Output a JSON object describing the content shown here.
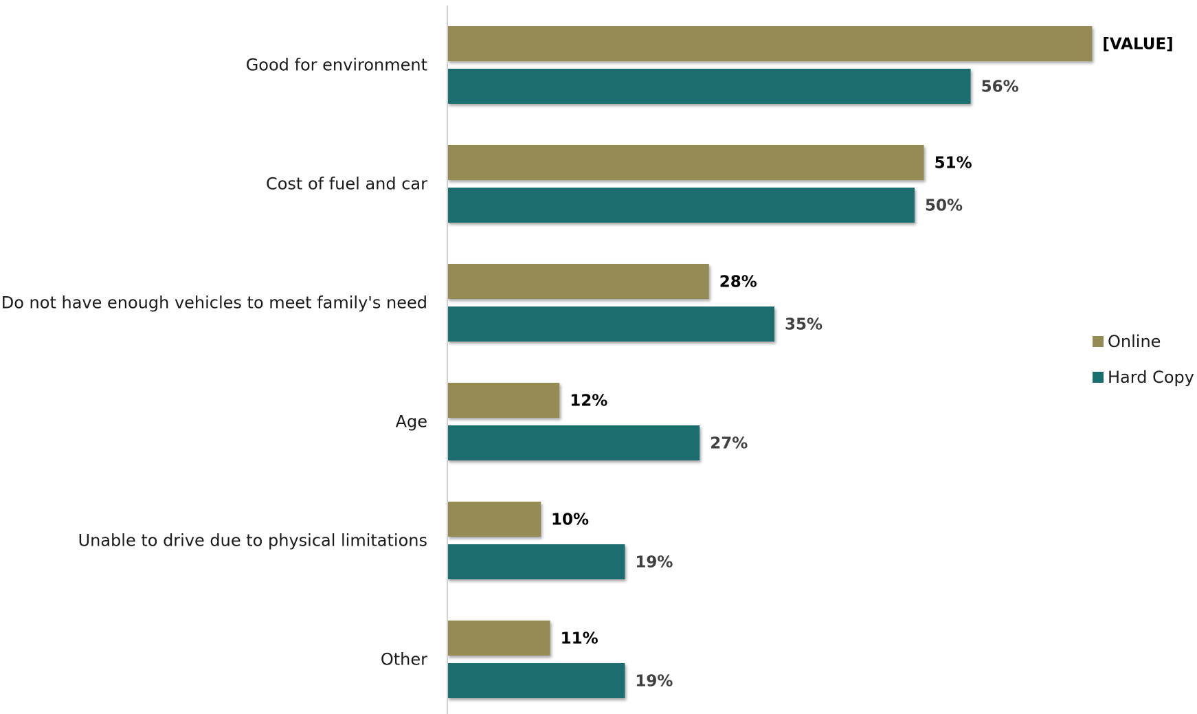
{
  "chart_data": {
    "type": "bar",
    "orientation": "horizontal",
    "categories": [
      "Good for environment",
      "Cost of fuel and car",
      "Do not have enough vehicles to meet family's need",
      "Age",
      "Unable to drive due to physical limitations",
      "Other"
    ],
    "series": [
      {
        "name": "Online",
        "color": "#948B54",
        "values": [
          69,
          51,
          28,
          12,
          10,
          11
        ],
        "labels": [
          "[VALUE]",
          "51%",
          "28%",
          "12%",
          "10%",
          "11%"
        ],
        "label_color": "#000000"
      },
      {
        "name": "Hard Copy",
        "color": "#1B6E6E",
        "values": [
          56,
          50,
          35,
          27,
          19,
          19
        ],
        "labels": [
          "56%",
          "50%",
          "35%",
          "27%",
          "19%",
          "19%"
        ],
        "label_color": "#404040"
      }
    ],
    "xlim": [
      0,
      70
    ],
    "grid": false,
    "legend_position": "right",
    "title": "",
    "xlabel": "",
    "ylabel": ""
  }
}
